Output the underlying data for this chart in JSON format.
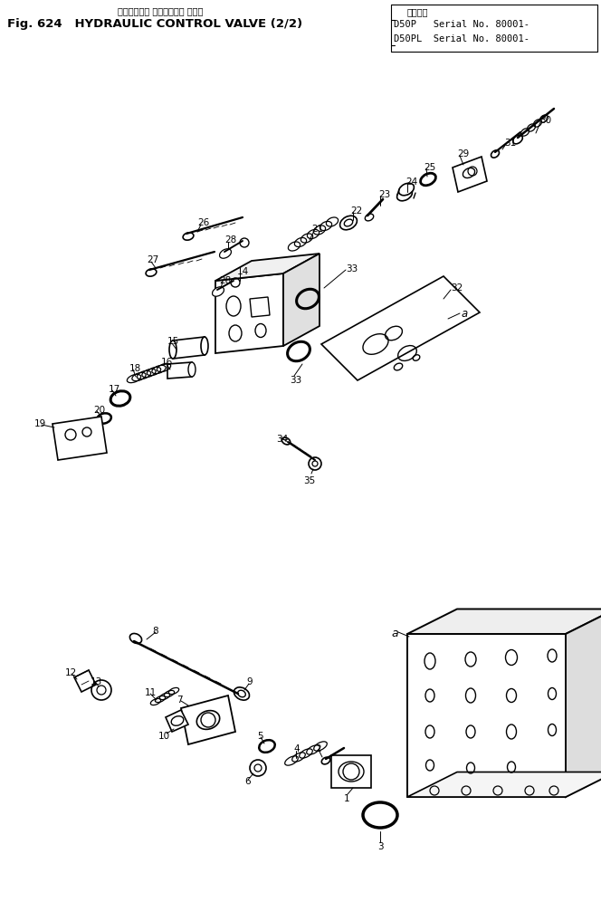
{
  "title_jp": "ハイドロック コントロール バルブ",
  "title_en": "Fig. 624   HYDRAULIC CONTROL VALVE (2/2)",
  "serial_header": "適用機種",
  "serial1": "D50P   Serial No. 80001-",
  "serial2": "D50PL  Serial No. 80001-",
  "bg_color": "#ffffff",
  "fg_color": "#000000",
  "fig_width": 6.64,
  "fig_height": 10.17
}
